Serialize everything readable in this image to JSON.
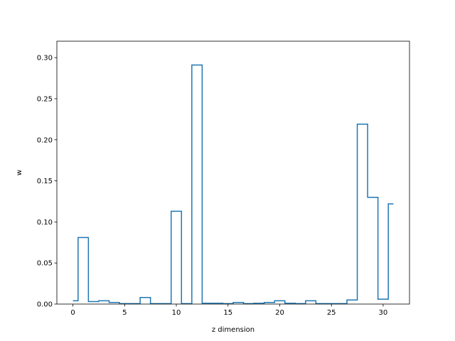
{
  "chart_data": {
    "type": "line",
    "drawstyle": "steps-mid",
    "title": "",
    "xlabel": "z dimension",
    "ylabel": "w",
    "xlim": [
      -1.55,
      32.55
    ],
    "ylim": [
      0.0,
      0.32
    ],
    "xticks": [
      0,
      5,
      10,
      15,
      20,
      25,
      30
    ],
    "yticks": [
      0.0,
      0.05,
      0.1,
      0.15,
      0.2,
      0.25,
      0.3
    ],
    "ytick_labels": [
      "0.00",
      "0.05",
      "0.10",
      "0.15",
      "0.20",
      "0.25",
      "0.30"
    ],
    "grid": false,
    "line_color": "#1f77b4",
    "x": [
      0,
      1,
      2,
      3,
      4,
      5,
      6,
      7,
      8,
      9,
      10,
      11,
      12,
      13,
      14,
      15,
      16,
      17,
      18,
      19,
      20,
      21,
      22,
      23,
      24,
      25,
      26,
      27,
      28,
      29,
      30,
      31
    ],
    "y": [
      0.004,
      0.081,
      0.003,
      0.004,
      0.002,
      0.0005,
      0.0005,
      0.008,
      0.0005,
      0.0005,
      0.113,
      0.0005,
      0.291,
      0.001,
      0.001,
      0.0005,
      0.002,
      0.0005,
      0.001,
      0.002,
      0.004,
      0.001,
      0.0005,
      0.004,
      0.0005,
      0.0005,
      0.0005,
      0.005,
      0.219,
      0.13,
      0.006,
      0.122
    ]
  }
}
